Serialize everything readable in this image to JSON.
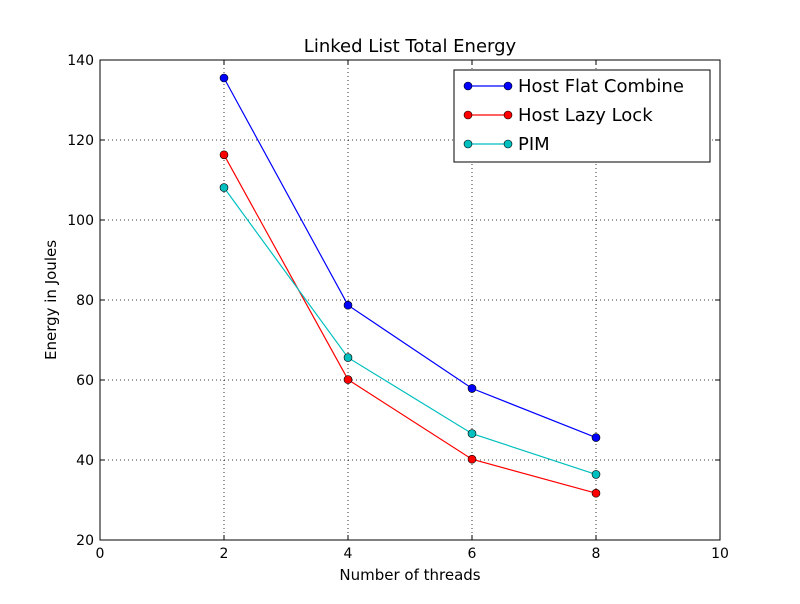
{
  "chart_data": {
    "type": "line",
    "title": "Linked List Total Energy",
    "xlabel": "Number of threads",
    "ylabel": "Energy in Joules",
    "xlim": [
      0,
      10
    ],
    "ylim": [
      20,
      140
    ],
    "xticks": [
      0,
      2,
      4,
      6,
      8,
      10
    ],
    "yticks": [
      20,
      40,
      60,
      80,
      100,
      120,
      140
    ],
    "grid": true,
    "legend_position": "top-right",
    "x": [
      2,
      4,
      6,
      8
    ],
    "series": [
      {
        "name": "Host Flat Combine",
        "color": "#0000ff",
        "values": [
          135.5,
          78.7,
          57.9,
          45.6
        ]
      },
      {
        "name": "Host Lazy Lock",
        "color": "#ff0000",
        "values": [
          116.3,
          60.1,
          40.2,
          31.7
        ]
      },
      {
        "name": "PIM",
        "color": "#00bfbf",
        "values": [
          108.1,
          65.6,
          46.6,
          36.4
        ]
      }
    ]
  }
}
